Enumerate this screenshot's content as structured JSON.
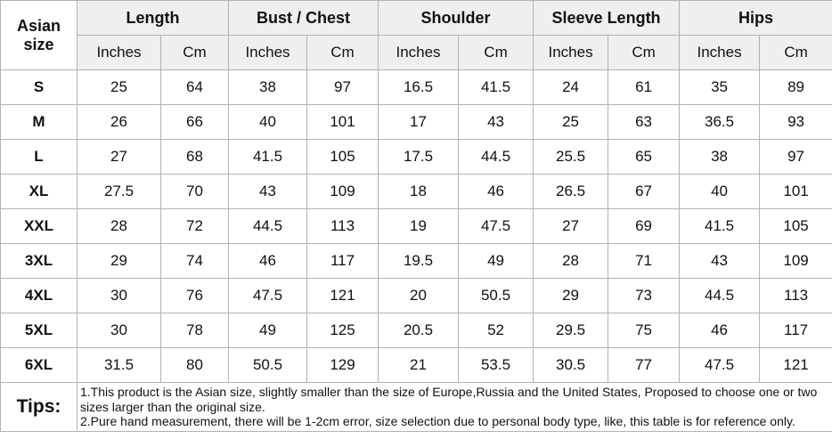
{
  "chart_data": {
    "type": "table",
    "corner_label": "Asian size",
    "unit_headers": {
      "inches": "Inches",
      "cm": "Cm"
    },
    "column_groups": [
      {
        "label": "Length"
      },
      {
        "label": "Bust / Chest"
      },
      {
        "label": "Shoulder"
      },
      {
        "label": "Sleeve Length"
      },
      {
        "label": "Hips"
      }
    ],
    "rows": [
      {
        "size": "S",
        "values": [
          "25",
          "64",
          "38",
          "97",
          "16.5",
          "41.5",
          "24",
          "61",
          "35",
          "89"
        ]
      },
      {
        "size": "M",
        "values": [
          "26",
          "66",
          "40",
          "101",
          "17",
          "43",
          "25",
          "63",
          "36.5",
          "93"
        ]
      },
      {
        "size": "L",
        "values": [
          "27",
          "68",
          "41.5",
          "105",
          "17.5",
          "44.5",
          "25.5",
          "65",
          "38",
          "97"
        ]
      },
      {
        "size": "XL",
        "values": [
          "27.5",
          "70",
          "43",
          "109",
          "18",
          "46",
          "26.5",
          "67",
          "40",
          "101"
        ]
      },
      {
        "size": "XXL",
        "values": [
          "28",
          "72",
          "44.5",
          "113",
          "19",
          "47.5",
          "27",
          "69",
          "41.5",
          "105"
        ]
      },
      {
        "size": "3XL",
        "values": [
          "29",
          "74",
          "46",
          "117",
          "19.5",
          "49",
          "28",
          "71",
          "43",
          "109"
        ]
      },
      {
        "size": "4XL",
        "values": [
          "30",
          "76",
          "47.5",
          "121",
          "20",
          "50.5",
          "29",
          "73",
          "44.5",
          "113"
        ]
      },
      {
        "size": "5XL",
        "values": [
          "30",
          "78",
          "49",
          "125",
          "20.5",
          "52",
          "29.5",
          "75",
          "46",
          "117"
        ]
      },
      {
        "size": "6XL",
        "values": [
          "31.5",
          "80",
          "50.5",
          "129",
          "21",
          "53.5",
          "30.5",
          "77",
          "47.5",
          "121"
        ]
      }
    ],
    "tips": {
      "label": "Tips:",
      "notes": [
        "1.This product is the Asian size, slightly smaller than the size of Europe,Russia and the United States, Proposed to choose one or two sizes larger than the original size.",
        "2.Pure hand measurement, there will be 1-2cm error, size selection due to personal body type, like, this table is for reference only."
      ]
    }
  },
  "colors": {
    "inches_text": "#fb2b2b",
    "cm_text": "#111111",
    "header_bg": "#efefef",
    "cell_bg": "#ffffff",
    "border": "#b2b2b2"
  }
}
